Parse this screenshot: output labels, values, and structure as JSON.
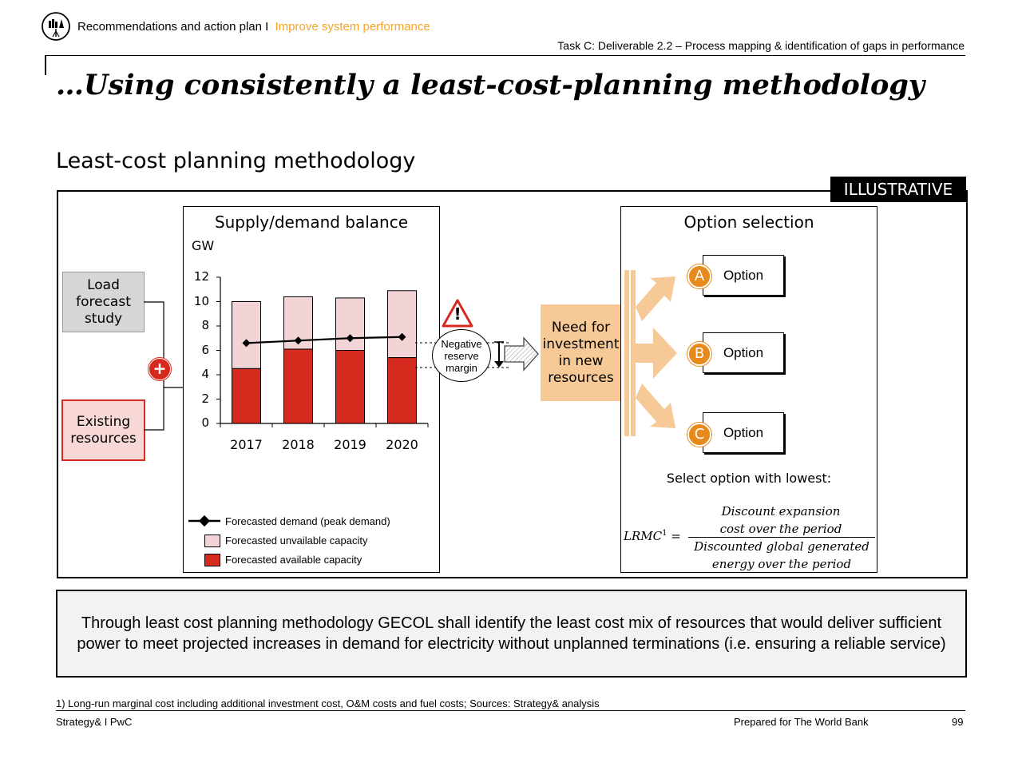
{
  "header": {
    "section": "Recommendations and action plan I",
    "topic": "Improve system performance",
    "task": "Task C: Deliverable 2.2 – Process mapping & identification of gaps in performance"
  },
  "title": "…Using consistently a least-cost-planning methodology",
  "subtitle": "Least-cost planning methodology",
  "badge": "ILLUSTRATIVE",
  "inputs": {
    "load_forecast": "Load forecast study",
    "existing_resources": "Existing resources",
    "plus": "+"
  },
  "chart_data": {
    "type": "bar",
    "title": "Supply/demand balance",
    "ylabel": "GW",
    "ylim": [
      0,
      12
    ],
    "yticks": [
      "0",
      "2",
      "4",
      "6",
      "8",
      "10",
      "12"
    ],
    "categories": [
      "2017",
      "2018",
      "2019",
      "2020"
    ],
    "stacked": true,
    "series": [
      {
        "name": "Forecasted available capacity",
        "type": "bar",
        "values": [
          4.5,
          6.1,
          6.0,
          5.4
        ]
      },
      {
        "name": "Forecasted unvailable capacity",
        "type": "bar",
        "values": [
          5.5,
          4.3,
          4.3,
          5.5
        ]
      },
      {
        "name": "Forecasted demand (peak demand)",
        "type": "line",
        "values": [
          6.6,
          6.8,
          7.0,
          7.1
        ]
      }
    ],
    "legend": [
      "Forecasted demand (peak demand)",
      "Forecasted unvailable capacity",
      "Forecasted available capacity"
    ]
  },
  "gap": {
    "warning": "!",
    "label": "Negative reserve margin"
  },
  "need": "Need for investment in new resources",
  "options_panel": {
    "title": "Option selection",
    "options": [
      {
        "letter": "A",
        "label": "Option"
      },
      {
        "letter": "B",
        "label": "Option"
      },
      {
        "letter": "C",
        "label": "Option"
      }
    ],
    "select_text": "Select option with lowest:",
    "formula_lhs": "LRMC",
    "formula_sup": "1",
    "formula_eq": " =",
    "numerator_1": "Discount expansion",
    "numerator_2": "cost over the period",
    "denominator_1": "Discounted global generated",
    "denominator_2": "energy over the period"
  },
  "conclusion": "Through least cost planning methodology GECOL shall identify the least cost mix of resources that would deliver sufficient power to meet projected increases in demand for electricity without unplanned terminations (i.e. ensuring a reliable service)",
  "footnote": "1) Long-run marginal cost including additional investment cost, O&M costs and fuel costs; Sources: Strategy& analysis",
  "footer": {
    "left": "Strategy& I PwC",
    "prepared": "Prepared for The World Bank",
    "page": "99"
  },
  "colors": {
    "accent": "#F5A623",
    "available": "#D52B1E",
    "unavailable": "#F2D3D6",
    "need_box": "#F7C996",
    "option_circle": "#E8891C",
    "conclusion_bg": "#F2F2F2"
  }
}
